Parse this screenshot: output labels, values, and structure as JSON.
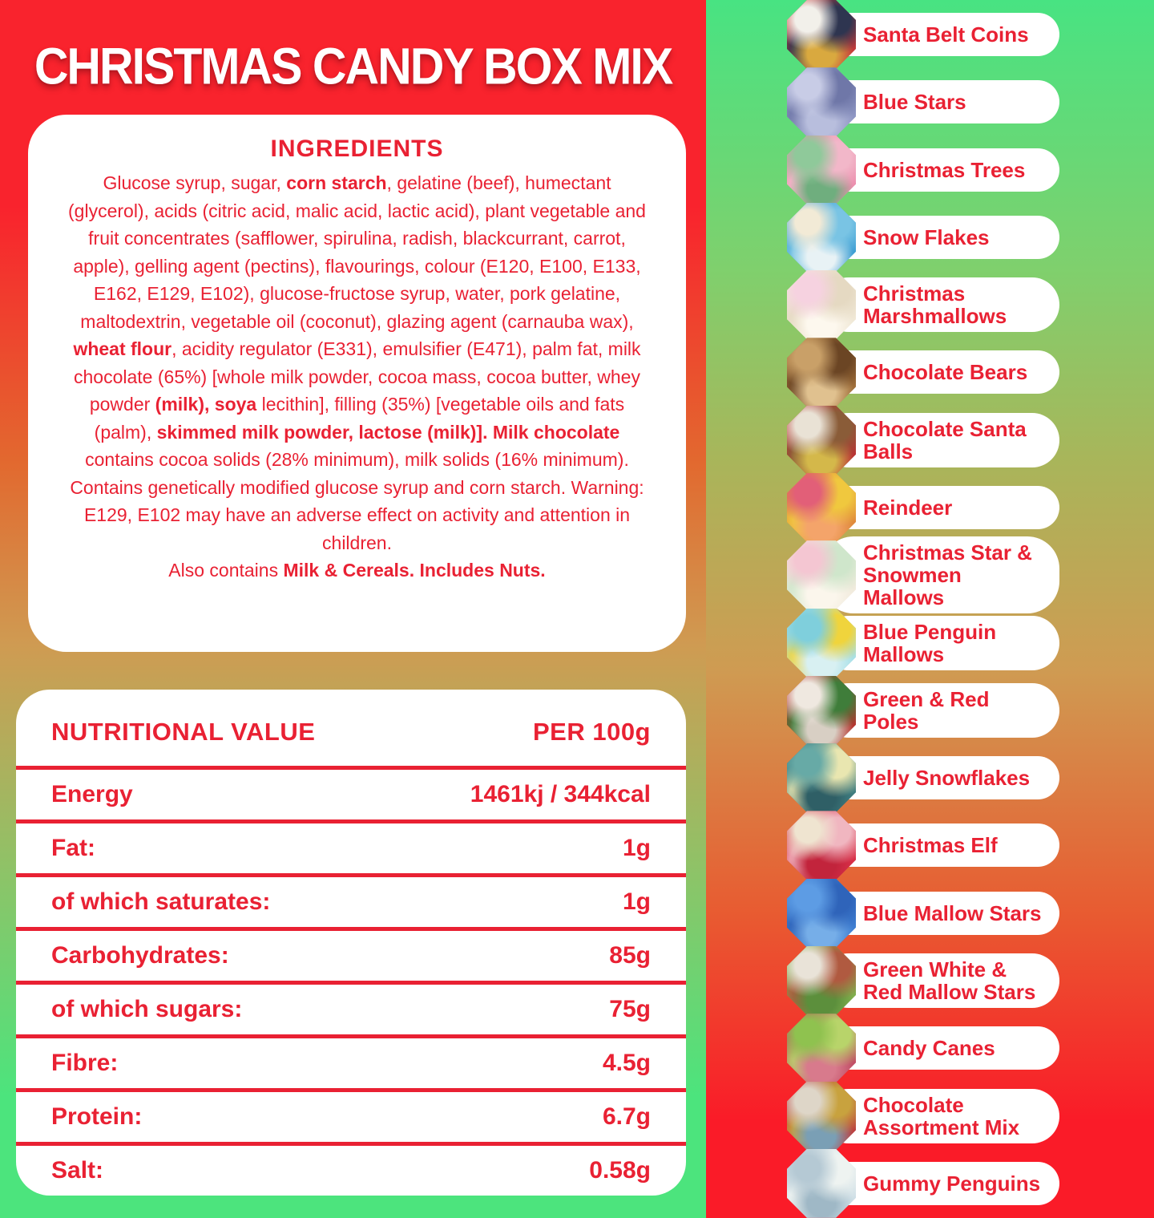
{
  "title": "CHRISTMAS CANDY BOX MIX",
  "colors": {
    "red": "#f9232d",
    "green": "#48e382",
    "tan": "#cf9b52",
    "text-red": "#e92133",
    "pill-white": "#ffffff"
  },
  "ingredients": {
    "heading": "INGREDIENTS",
    "paragraphs": [
      [
        {
          "text": "Glucose syrup, sugar, ",
          "bold": false
        },
        {
          "text": "corn starch",
          "bold": true
        },
        {
          "text": ", gelatine (beef), humectant (glycerol), acids (citric acid, malic acid, lactic acid), plant vegetable and fruit concentrates (safflower, spirulina, radish, blackcurrant, carrot, apple), gelling agent (pectins), flavourings, colour (E120, E100, E133, E162, E129, E102), glucose-fructose syrup, water, pork gelatine, maltodextrin, vegetable oil (coconut), glazing agent (carnauba wax), ",
          "bold": false
        },
        {
          "text": "wheat flour",
          "bold": true
        },
        {
          "text": ", acidity regulator (E331), emulsifier (E471), palm fat, milk chocolate (65%) [whole milk powder, cocoa mass, cocoa butter, whey powder ",
          "bold": false
        },
        {
          "text": "(milk), soya",
          "bold": true
        },
        {
          "text": " lecithin], filling (35%) [vegetable oils and fats (palm), ",
          "bold": false
        },
        {
          "text": "skimmed milk powder, lactose (milk)]. Milk chocolate",
          "bold": true
        },
        {
          "text": " contains cocoa solids (28% minimum), milk solids (16% minimum). Contains genetically modified glucose syrup and corn starch. Warning: E129, E102 may have an adverse effect on activity and attention in children.",
          "bold": false
        }
      ],
      [
        {
          "text": "Also contains ",
          "bold": false
        },
        {
          "text": "Milk & Cereals. Includes Nuts.",
          "bold": true
        }
      ]
    ]
  },
  "nutrition": {
    "header": {
      "label": "NUTRITIONAL VALUE",
      "per": "PER 100g"
    },
    "rows": [
      {
        "label": "Energy",
        "value": "1461kj / 344kcal"
      },
      {
        "label": "Fat:",
        "value": "1g"
      },
      {
        "label": "of which saturates:",
        "value": "1g"
      },
      {
        "label": "Carbohydrates:",
        "value": "85g"
      },
      {
        "label": "of which sugars:",
        "value": "75g"
      },
      {
        "label": "Fibre:",
        "value": "4.5g"
      },
      {
        "label": "Protein:",
        "value": "6.7g"
      },
      {
        "label": "Salt:",
        "value": "0.58g"
      }
    ]
  },
  "sidebar": {
    "items": [
      {
        "label": "Santa Belt Coins",
        "photo": "santa-belt-coins-photo",
        "colors": [
          "#c43a3a",
          "#f2f0ea",
          "#2e3550",
          "#d9a93f"
        ]
      },
      {
        "label": "Blue Stars",
        "photo": "blue-stars-photo",
        "colors": [
          "#8f97c4",
          "#c8cce6",
          "#6f77a8",
          "#b8bedd"
        ]
      },
      {
        "label": "Christmas Trees",
        "photo": "christmas-trees-photo",
        "colors": [
          "#ec8fae",
          "#8fc99a",
          "#f2b7c9",
          "#6fae7e"
        ]
      },
      {
        "label": "Snow Flakes",
        "photo": "snow-flakes-photo",
        "colors": [
          "#3f9fd4",
          "#f2ead6",
          "#79c4e4",
          "#e8f2f5"
        ]
      },
      {
        "label": "Christmas\nMarshmallows",
        "photo": "christmas-marshmallows-photo",
        "colors": [
          "#f0e8d6",
          "#f6d2e0",
          "#e5d9c2",
          "#fdf8ee"
        ]
      },
      {
        "label": "Chocolate Bears",
        "photo": "chocolate-bears-photo",
        "colors": [
          "#a06f3a",
          "#c9a068",
          "#6b4524",
          "#e0c18f"
        ]
      },
      {
        "label": "Chocolate Santa\nBalls",
        "photo": "chocolate-santa-balls-photo",
        "colors": [
          "#b93434",
          "#e9e2d5",
          "#8a5c38",
          "#d4b84a"
        ]
      },
      {
        "label": "Reindeer",
        "photo": "reindeer-photo",
        "colors": [
          "#e08a3c",
          "#e25f78",
          "#f0c83e",
          "#f4a46a"
        ]
      },
      {
        "label": "Christmas Star &\nSnowmen Mallows",
        "photo": "christmas-star-snowmen-mallows-photo",
        "colors": [
          "#f1ebdd",
          "#f4c6d2",
          "#cfe6cb",
          "#fbf6ec"
        ]
      },
      {
        "label": "Blue Penguin\nMallows",
        "photo": "blue-penguin-mallows-photo",
        "colors": [
          "#a8e0e8",
          "#7fcfdc",
          "#f0d43c",
          "#d8f0f2"
        ]
      },
      {
        "label": "Green & Red Poles",
        "photo": "green-red-poles-photo",
        "colors": [
          "#b5352f",
          "#efe8e0",
          "#3f7d3a",
          "#d8cfc4"
        ]
      },
      {
        "label": "Jelly Snowflakes",
        "photo": "jelly-snowflakes-photo",
        "colors": [
          "#3f7d80",
          "#67aaa6",
          "#e9e6b0",
          "#2f5f66"
        ]
      },
      {
        "label": "Christmas Elf",
        "photo": "christmas-elf-photo",
        "colors": [
          "#d82f48",
          "#efe4d0",
          "#f0b6c0",
          "#c2243c"
        ]
      },
      {
        "label": "Blue Mallow Stars",
        "photo": "blue-mallow-stars-photo",
        "colors": [
          "#3f7fd2",
          "#5d9ce4",
          "#2f64ba",
          "#76aee8"
        ]
      },
      {
        "label": "Green White &\nRed Mallow Stars",
        "photo": "green-white-red-mallow-stars-photo",
        "colors": [
          "#7fae4c",
          "#e9e3d8",
          "#b05a40",
          "#5c8f3c"
        ]
      },
      {
        "label": "Candy Canes",
        "photo": "candy-canes-photo",
        "colors": [
          "#c24f66",
          "#8fc24f",
          "#b8d46a",
          "#d87a8c"
        ]
      },
      {
        "label": "Chocolate\nAssortment Mix",
        "photo": "chocolate-assortment-mix-photo",
        "colors": [
          "#bc4040",
          "#ded6c8",
          "#c8a23e",
          "#7a9fb5"
        ]
      },
      {
        "label": "Gummy Penguins",
        "photo": "gummy-penguins-photo",
        "colors": [
          "#cfdfe6",
          "#b5c9d4",
          "#eef3f1",
          "#9fb8c6"
        ]
      }
    ]
  }
}
